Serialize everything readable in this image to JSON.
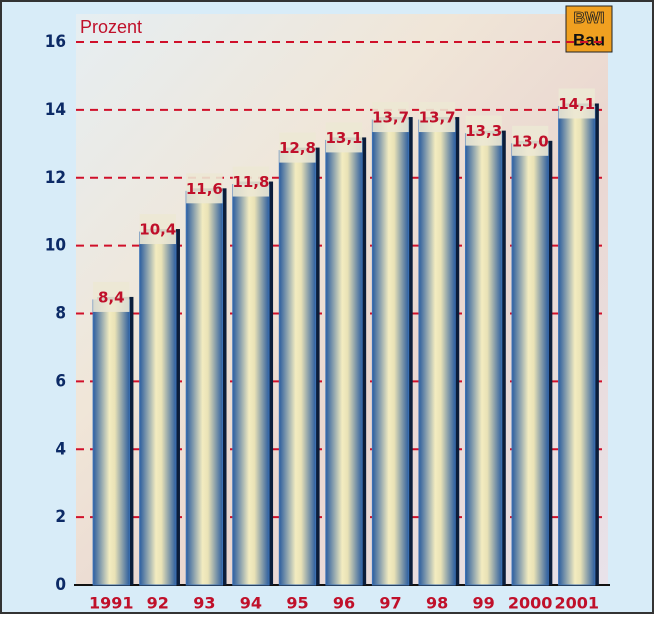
{
  "chart_data": {
    "type": "bar",
    "title": "Prozent",
    "logo": {
      "top": "BWI",
      "bottom": "Bau"
    },
    "categories": [
      "1991",
      "92",
      "93",
      "94",
      "95",
      "96",
      "97",
      "98",
      "99",
      "2000",
      "2001"
    ],
    "values": [
      8.4,
      10.4,
      11.6,
      11.8,
      12.8,
      13.1,
      13.7,
      13.7,
      13.3,
      13.0,
      14.1
    ],
    "value_labels": [
      "8,4",
      "10,4",
      "11,6",
      "11,8",
      "12,8",
      "13,1",
      "13,7",
      "13,7",
      "13,3",
      "13,0",
      "14,1"
    ],
    "color": "#3d72b6",
    "ylim": [
      0,
      16
    ],
    "yticks": [
      0,
      2,
      4,
      6,
      8,
      10,
      12,
      14,
      16
    ],
    "grid": true,
    "grid_color": "#d0102a"
  }
}
